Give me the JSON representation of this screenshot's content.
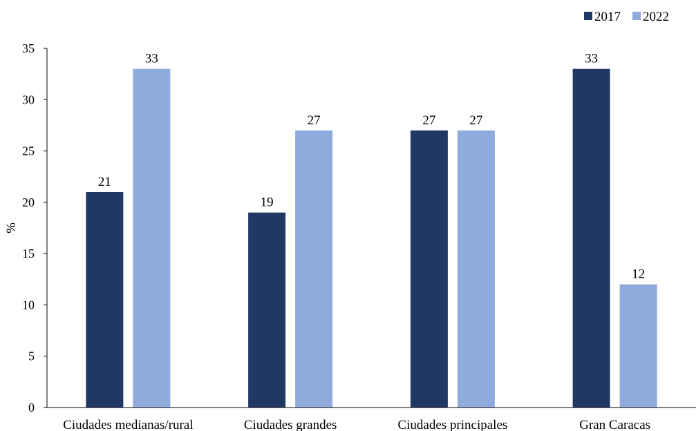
{
  "chart_data": {
    "type": "bar",
    "categories": [
      "Ciudades medianas/rural",
      "Ciudades grandes",
      "Ciudades principales",
      "Gran Caracas"
    ],
    "series": [
      {
        "name": "2017",
        "values": [
          21,
          19,
          27,
          33
        ],
        "color": "#203864"
      },
      {
        "name": "2022",
        "values": [
          33,
          27,
          27,
          12
        ],
        "color": "#8faadc"
      }
    ],
    "title": "",
    "xlabel": "",
    "ylabel": "%",
    "ylim": [
      0,
      35
    ],
    "yticks": [
      0,
      5,
      10,
      15,
      20,
      25,
      30,
      35
    ],
    "grid": false,
    "legend_position": "top-right",
    "data_labels": true
  }
}
